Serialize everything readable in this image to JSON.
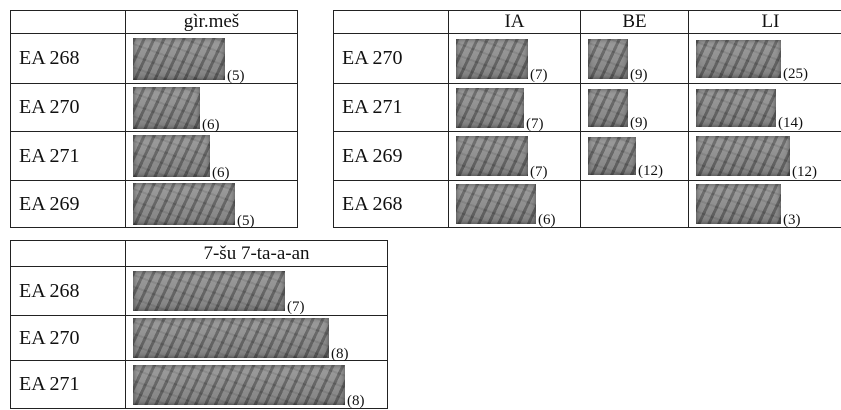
{
  "table1": {
    "header": [
      "gìr.meš"
    ],
    "rows": [
      [
        "EA 268",
        "(5)"
      ],
      [
        "EA 270",
        "(6)"
      ],
      [
        "EA 271",
        "(6)"
      ],
      [
        "EA 269",
        "(5)"
      ]
    ]
  },
  "table2": {
    "header": [
      "IA",
      "BE",
      "LI"
    ],
    "rows": [
      [
        "EA 270",
        "(7)",
        "(9)",
        "(25)"
      ],
      [
        "EA 271",
        "(7)",
        "(9)",
        "(14)"
      ],
      [
        "EA 269",
        "(7)",
        "(12)",
        "(12)"
      ],
      [
        "EA 268",
        "(6)",
        null,
        "(3)"
      ]
    ]
  },
  "table3": {
    "header": [
      "7-šu 7-ta-a-an"
    ],
    "rows": [
      [
        "EA 268",
        "(7)"
      ],
      [
        "EA 270",
        "(8)"
      ],
      [
        "EA 271",
        "(8)"
      ]
    ]
  }
}
